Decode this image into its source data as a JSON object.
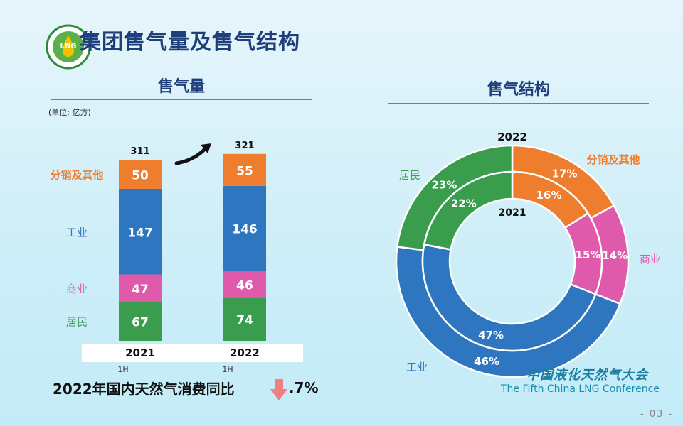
{
  "page": {
    "title": "集团售气量及售气结构",
    "number": "- 03 -",
    "left_subtitle": "售气量",
    "right_subtitle": "售气结构",
    "unit": "(单位: 亿方)",
    "consumption_text": "2022年国内天然气消费同比",
    "consumption_pct": ".7%",
    "conference_cn": "中国液化天然气大会",
    "conference_en": "The Fifth China LNG Conference",
    "logo_text": "LNG"
  },
  "colors": {
    "residential": "#3a9c4d",
    "commercial": "#e05aac",
    "industrial": "#2f76c0",
    "distribution": "#ef7d2e",
    "title": "#1f3f7a",
    "down_arrow": "#f08080"
  },
  "chart_data": [
    {
      "type": "bar",
      "stacked": true,
      "categories": [
        "2021",
        "2022"
      ],
      "period": "1H",
      "totals": [
        311,
        321
      ],
      "series": [
        {
          "name": "居民",
          "values": [
            67,
            74
          ]
        },
        {
          "name": "商业",
          "values": [
            47,
            46
          ]
        },
        {
          "name": "工业",
          "values": [
            147,
            146
          ]
        },
        {
          "name": "分销及其他",
          "values": [
            50,
            55
          ]
        }
      ]
    },
    {
      "type": "pie",
      "donut": true,
      "rings": [
        {
          "name": "2022",
          "values": [
            17,
            14,
            46,
            23
          ]
        },
        {
          "name": "2021",
          "values": [
            16,
            15,
            47,
            22
          ]
        }
      ],
      "labels": [
        "分销及其他",
        "商业",
        "工业",
        "居民"
      ]
    }
  ]
}
